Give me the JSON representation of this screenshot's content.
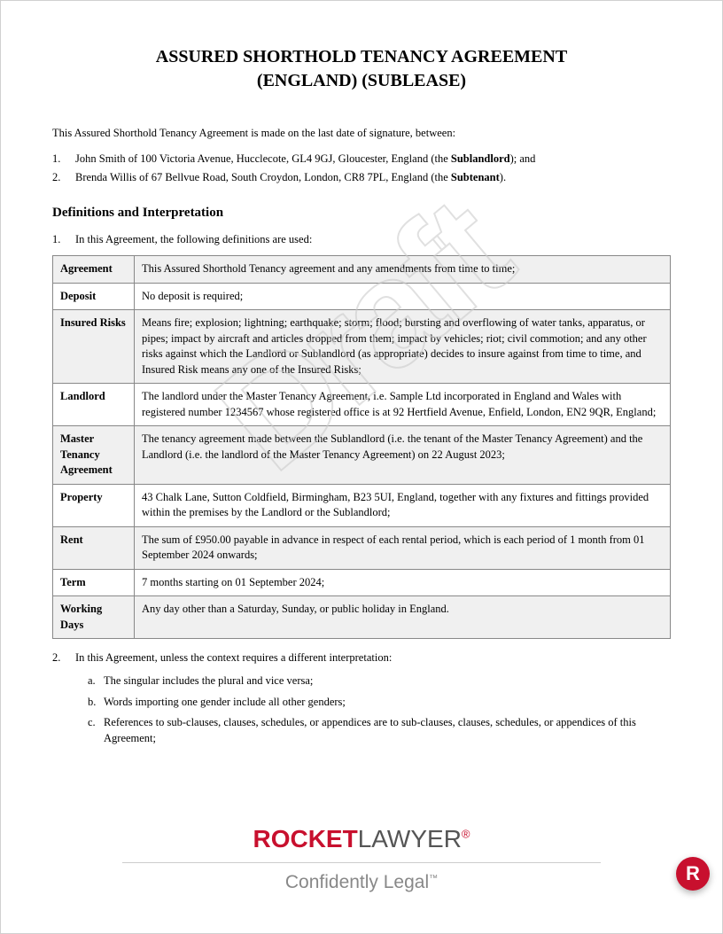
{
  "title_line1": "ASSURED SHORTHOLD TENANCY AGREEMENT",
  "title_line2": "(ENGLAND) (SUBLEASE)",
  "intro": "This Assured Shorthold Tenancy Agreement is made on the last date of signature, between:",
  "parties": [
    {
      "num": "1.",
      "text_pre": "John Smith of 100 Victoria Avenue, Hucclecote, GL4 9GJ, Gloucester, England (the ",
      "bold": "Sublandlord",
      "text_post": "); and"
    },
    {
      "num": "2.",
      "text_pre": "Brenda Willis of 67 Bellvue Road, South Croydon, London, CR8 7PL, England  (the ",
      "bold": "Subtenant",
      "text_post": ")."
    }
  ],
  "section_heading": "Definitions and Interpretation",
  "clause1": {
    "num": "1.",
    "text": "In this Agreement, the following definitions are used:"
  },
  "definitions": [
    {
      "term": "Agreement",
      "def": "This Assured Shorthold Tenancy agreement and any amendments from time to time;"
    },
    {
      "term": "Deposit",
      "def": "No deposit is required;"
    },
    {
      "term": "Insured Risks",
      "def": "Means fire; explosion; lightning; earthquake; storm; flood; bursting and overflowing of water tanks, apparatus, or pipes; impact by aircraft and articles dropped from them; impact by vehicles; riot; civil commotion; and any other risks against which the Landlord or Sublandlord (as appropriate) decides to insure against from time to time, and Insured Risk means any one of the Insured Risks;"
    },
    {
      "term": "Landlord",
      "def": "The landlord under the Master Tenancy Agreement, i.e. Sample Ltd incorporated in England and Wales  with registered number 1234567 whose registered office is at 92 Hertfield Avenue, Enfield, London, EN2 9QR, England;"
    },
    {
      "term": "Master Tenancy Agreement",
      "def": "The tenancy agreement made between the Sublandlord (i.e. the tenant of the Master Tenancy Agreement) and the Landlord (i.e. the landlord of the Master Tenancy Agreement) on 22 August 2023;"
    },
    {
      "term": "Property",
      "def": "43 Chalk Lane, Sutton Coldfield, Birmingham, B23 5UI, England, together with any fixtures and fittings provided within the premises by the Landlord or the Sublandlord;"
    },
    {
      "term": "Rent",
      "def": "The sum of £950.00 payable in advance in respect of each rental period, which is each period of 1 month  from 01 September 2024 onwards;"
    },
    {
      "term": "Term",
      "def": "7 months starting on 01 September 2024;"
    },
    {
      "term": "Working Days",
      "def": "Any day other than a Saturday, Sunday, or public holiday in England."
    }
  ],
  "clause2": {
    "num": "2.",
    "text": "In this Agreement, unless the context requires a different interpretation:"
  },
  "sub_items": [
    {
      "letter": "a.",
      "text": "The singular includes the plural and vice versa;"
    },
    {
      "letter": "b.",
      "text": "Words importing one gender include all other genders;"
    },
    {
      "letter": "c.",
      "text": "References to sub-clauses, clauses, schedules, or appendices are to sub-clauses, clauses, schedules, or appendices of this Agreement;"
    }
  ],
  "watermark": "Draft",
  "brand": {
    "rocket": "ROCKET",
    "lawyer": "LAWYER",
    "reg": "®"
  },
  "tagline": {
    "text": "Confidently Legal",
    "tm": "™"
  },
  "badge": "R",
  "colors": {
    "brand_red": "#c8102e",
    "brand_gray": "#555555",
    "tagline_gray": "#888888",
    "border": "#888888",
    "row_alt": "#f0f0f0",
    "watermark_stroke": "#cccccc"
  }
}
